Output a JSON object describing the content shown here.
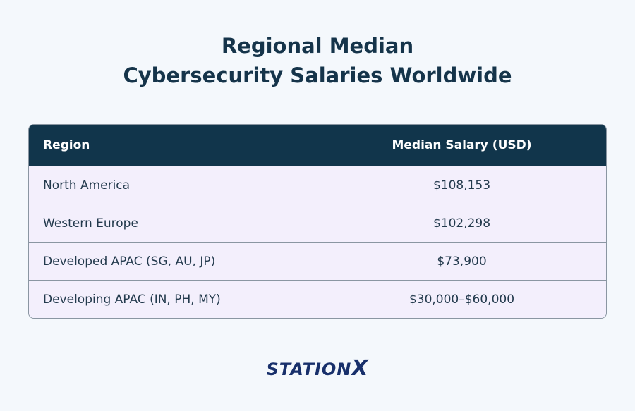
{
  "header": {
    "title_line1": "Regional Median",
    "title_line2": "Cybersecurity Salaries Worldwide"
  },
  "table": {
    "columns": [
      "Region",
      "Median Salary (USD)"
    ],
    "rows": [
      [
        "North America",
        "$108,153"
      ],
      [
        "Western Europe",
        "$102,298"
      ],
      [
        "Developed APAC (SG, AU, JP)",
        "$73,900"
      ],
      [
        "Developing APAC (IN, PH, MY)",
        "$30,000–$60,000"
      ]
    ]
  },
  "footer": {
    "logo_left": "STATION",
    "logo_right": "X"
  }
}
